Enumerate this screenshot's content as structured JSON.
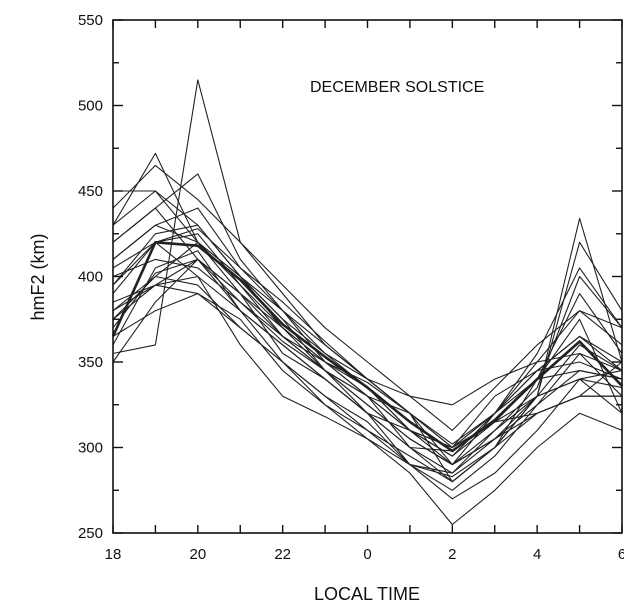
{
  "chart_data": {
    "type": "line",
    "annotation": "DECEMBER SOLSTICE",
    "xlabel": "LOCAL TIME",
    "ylabel": "hmF2 (km)",
    "xlim": [
      18,
      30
    ],
    "ylim": [
      250,
      550
    ],
    "x_ticks": [
      18,
      19,
      20,
      21,
      22,
      23,
      24,
      25,
      26,
      27,
      28,
      29,
      30
    ],
    "x_tick_labels": [
      "18",
      "",
      "20",
      "",
      "22",
      "",
      "0",
      "",
      "2",
      "",
      "4",
      "",
      "6"
    ],
    "y_ticks": [
      250,
      300,
      350,
      400,
      450,
      500,
      550
    ],
    "y_tick_labels": [
      "250",
      "300",
      "350",
      "400",
      "450",
      "500",
      "550"
    ],
    "grid": false,
    "x": [
      18,
      19,
      20,
      21,
      22,
      23,
      24,
      25,
      26,
      27,
      28,
      29,
      30
    ],
    "series": [
      {
        "values": [
          355,
          360,
          515,
          420,
          390,
          360,
          340,
          320,
          280,
          300,
          330,
          340,
          345
        ]
      },
      {
        "values": [
          430,
          472,
          420,
          400,
          370,
          345,
          330,
          320,
          300,
          320,
          350,
          380,
          370
        ]
      },
      {
        "values": [
          440,
          465,
          445,
          420,
          395,
          370,
          350,
          330,
          310,
          335,
          360,
          380,
          360
        ]
      },
      {
        "values": [
          450,
          450,
          420,
          400,
          380,
          360,
          340,
          320,
          290,
          310,
          330,
          340,
          335
        ]
      },
      {
        "values": [
          420,
          440,
          460,
          410,
          380,
          350,
          330,
          310,
          300,
          330,
          345,
          350,
          340
        ]
      },
      {
        "values": [
          390,
          420,
          400,
          380,
          360,
          340,
          320,
          290,
          285,
          305,
          320,
          330,
          330
        ]
      },
      {
        "values": [
          375,
          400,
          395,
          370,
          350,
          330,
          310,
          290,
          283,
          300,
          320,
          330,
          350
        ]
      },
      {
        "values": [
          400,
          410,
          405,
          385,
          365,
          350,
          335,
          310,
          295,
          320,
          340,
          345,
          340
        ]
      },
      {
        "values": [
          410,
          430,
          420,
          390,
          355,
          340,
          320,
          300,
          285,
          310,
          335,
          400,
          370
        ]
      },
      {
        "values": [
          385,
          395,
          390,
          370,
          350,
          330,
          315,
          290,
          275,
          295,
          325,
          355,
          330
        ]
      },
      {
        "values": [
          360,
          405,
          415,
          380,
          350,
          325,
          305,
          290,
          270,
          285,
          310,
          340,
          320
        ]
      },
      {
        "values": [
          395,
          420,
          425,
          395,
          365,
          345,
          325,
          305,
          290,
          305,
          330,
          360,
          345
        ]
      },
      {
        "values": [
          365,
          380,
          390,
          375,
          345,
          325,
          310,
          295,
          280,
          300,
          330,
          420,
          380
        ]
      },
      {
        "values": [
          430,
          450,
          430,
          400,
          375,
          355,
          335,
          310,
          290,
          320,
          345,
          365,
          350
        ]
      },
      {
        "values": [
          380,
          395,
          400,
          360,
          330,
          318,
          305,
          285,
          255,
          275,
          300,
          320,
          310
        ]
      },
      {
        "values": [
          350,
          385,
          410,
          380,
          360,
          340,
          320,
          300,
          280,
          300,
          340,
          375,
          320
        ]
      },
      {
        "values": [
          405,
          420,
          428,
          405,
          385,
          362,
          340,
          320,
          300,
          320,
          355,
          405,
          370
        ]
      },
      {
        "values": [
          370,
          402,
          410,
          390,
          370,
          350,
          330,
          310,
          295,
          315,
          340,
          390,
          355
        ]
      },
      {
        "values": [
          395,
          425,
          430,
          400,
          375,
          345,
          320,
          310,
          300,
          315,
          330,
          434,
          350
        ]
      },
      {
        "values": [
          410,
          430,
          440,
          405,
          380,
          355,
          340,
          330,
          325,
          340,
          350,
          355,
          345
        ]
      },
      {
        "values": [
          420,
          440,
          410,
          385,
          362,
          345,
          330,
          300,
          298,
          315,
          320,
          330,
          330
        ]
      },
      {
        "values": [
          375,
          395,
          410,
          390,
          365,
          345,
          325,
          305,
          290,
          305,
          325,
          345,
          340
        ]
      },
      {
        "values": [
          380,
          400,
          420,
          395,
          370,
          350,
          338,
          320,
          302,
          320,
          345,
          365,
          345
        ]
      },
      {
        "values": [
          365,
          420,
          418,
          398,
          372,
          353,
          335,
          315,
          298,
          316,
          340,
          362,
          336
        ]
      }
    ],
    "bold_series": [
      23
    ]
  }
}
